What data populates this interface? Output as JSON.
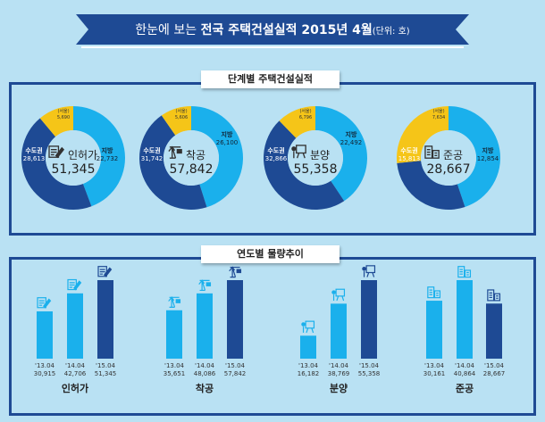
{
  "header": {
    "title_light": "한눈에 보는",
    "title_bold": "전국 주택건설실적 2015년 4월",
    "unit": "(단위: 호)"
  },
  "colors": {
    "ribbon": "#1e4a94",
    "metro": "#1e4a94",
    "local": "#1ab0ec",
    "seoul": "#f5c518",
    "bar_light": "#1ab0ec",
    "bar_dark": "#1e4a94",
    "background": "#b9e1f3"
  },
  "sections": {
    "stage": "단계별 주택건설실적",
    "trend": "연도별 물량추이"
  },
  "chart_data": [
    {
      "type": "pie",
      "variant": "donut",
      "title": "단계별 주택건설실적",
      "charts": [
        {
          "name": "인허가",
          "icon": "document-pen-icon",
          "total": "51,345",
          "metro_label": "수도권",
          "metro": 28613,
          "metro_text": "28,613",
          "local_label": "지방",
          "local": 22732,
          "local_text": "22,732",
          "seoul_label": "(서울)",
          "seoul": 5690,
          "seoul_text": "5,690"
        },
        {
          "name": "착공",
          "icon": "crane-icon",
          "total": "57,842",
          "metro_label": "수도권",
          "metro": 31742,
          "metro_text": "31,742",
          "local_label": "지방",
          "local": 26100,
          "local_text": "26,100",
          "seoul_label": "(서울)",
          "seoul": 5606,
          "seoul_text": "5,606"
        },
        {
          "name": "분양",
          "icon": "presentation-board-icon",
          "total": "55,358",
          "metro_label": "수도권",
          "metro": 32866,
          "metro_text": "32,866",
          "local_label": "지방",
          "local": 22492,
          "local_text": "22,492",
          "seoul_label": "(서울)",
          "seoul": 6796,
          "seoul_text": "6,796"
        },
        {
          "name": "준공",
          "icon": "buildings-icon",
          "total": "28,667",
          "metro_label": "수도권",
          "metro": 15813,
          "metro_text": "15,813",
          "local_label": "지방",
          "local": 12854,
          "local_text": "12,854",
          "seoul_label": "(서울)",
          "seoul": 7634,
          "seoul_text": "7,634"
        }
      ]
    },
    {
      "type": "bar",
      "title": "연도별 물량추이",
      "groups": [
        {
          "name": "인허가",
          "icon": "document-pen-icon",
          "categories": [
            "'13.04",
            "'14.04",
            "'15.04"
          ],
          "values": [
            30915,
            42706,
            51345
          ],
          "labels": [
            "30,915",
            "42,706",
            "51,345"
          ]
        },
        {
          "name": "착공",
          "icon": "crane-icon",
          "categories": [
            "'13.04",
            "'14.04",
            "'15.04"
          ],
          "values": [
            35651,
            48086,
            57842
          ],
          "labels": [
            "35,651",
            "48,086",
            "57,842"
          ]
        },
        {
          "name": "분양",
          "icon": "presentation-board-icon",
          "categories": [
            "'13.04",
            "'14.04",
            "'15.04"
          ],
          "values": [
            16182,
            38769,
            55358
          ],
          "labels": [
            "16,182",
            "38,769",
            "55,358"
          ]
        },
        {
          "name": "준공",
          "icon": "buildings-icon",
          "categories": [
            "'13.04",
            "'14.04",
            "'15.04"
          ],
          "values": [
            30161,
            40864,
            28667
          ],
          "labels": [
            "30,161",
            "40,864",
            "28,667"
          ]
        }
      ]
    }
  ]
}
